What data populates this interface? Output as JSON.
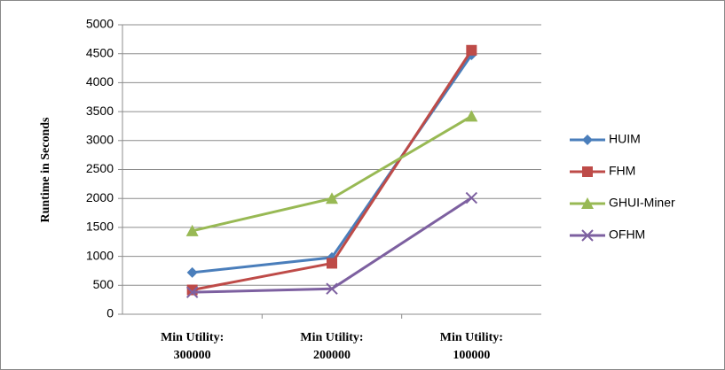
{
  "chart_data": {
    "type": "line",
    "y_label": "Runtime  in Seconds",
    "categories": [
      "Min Utility: 300000",
      "Min Utility: 200000",
      "Min Utility: 100000"
    ],
    "series": [
      {
        "name": "HUIM",
        "color": "#4a7ebb",
        "values": [
          720,
          980,
          4480
        ]
      },
      {
        "name": "FHM",
        "color": "#be4b48",
        "values": [
          420,
          880,
          4560
        ]
      },
      {
        "name": "GHUI-Miner",
        "color": "#98b954",
        "values": [
          1440,
          2000,
          3420
        ]
      },
      {
        "name": "OFHM",
        "color": "#7d60a0",
        "values": [
          380,
          440,
          2010
        ]
      }
    ],
    "ylim": [
      0,
      5000
    ],
    "yticks": [
      0,
      500,
      1000,
      1500,
      2000,
      2500,
      3000,
      3500,
      4000,
      4500,
      5000
    ],
    "grid": true,
    "legend": "right"
  }
}
